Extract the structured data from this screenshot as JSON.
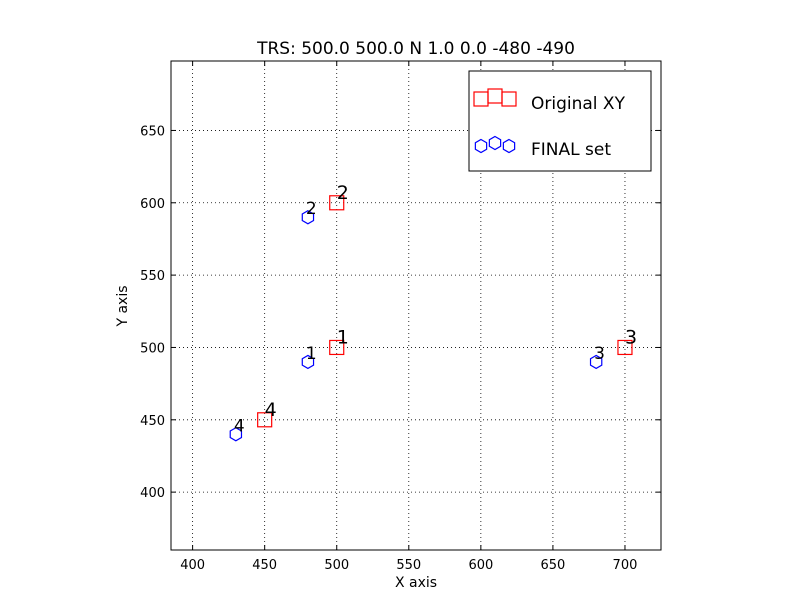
{
  "chart_data": {
    "type": "scatter",
    "title": "TRS: 500.0 500.0 N 1.0 0.0 -480 -490",
    "xlabel": "X axis",
    "ylabel": "Y axis",
    "xlim": [
      385,
      725
    ],
    "ylim": [
      360,
      698
    ],
    "xticks": [
      400,
      450,
      500,
      550,
      600,
      650,
      700
    ],
    "yticks": [
      400,
      450,
      500,
      550,
      600,
      650
    ],
    "grid": true,
    "legend_position": "top-right",
    "series": [
      {
        "name": "Original XY",
        "marker": "square",
        "color": "#ff0000",
        "points": [
          {
            "x": 500,
            "y": 500,
            "label": "1"
          },
          {
            "x": 500,
            "y": 600,
            "label": "2"
          },
          {
            "x": 700,
            "y": 500,
            "label": "3"
          },
          {
            "x": 450,
            "y": 450,
            "label": "4"
          }
        ]
      },
      {
        "name": "FINAL set",
        "marker": "hexagon",
        "color": "#0000ff",
        "points": [
          {
            "x": 480,
            "y": 490,
            "label": "1"
          },
          {
            "x": 480,
            "y": 590,
            "label": "2"
          },
          {
            "x": 680,
            "y": 490,
            "label": "3"
          },
          {
            "x": 430,
            "y": 440,
            "label": "4"
          }
        ]
      }
    ]
  }
}
